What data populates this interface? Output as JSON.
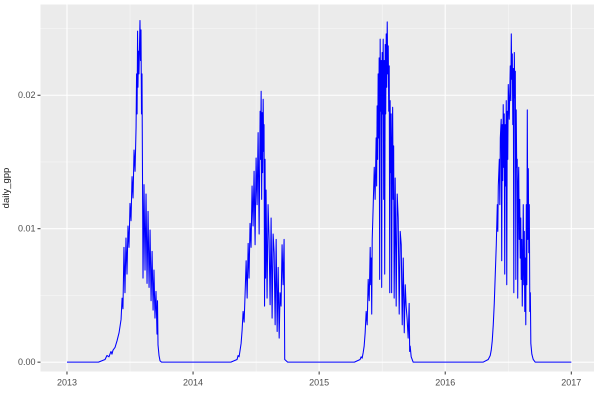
{
  "figure": {
    "kind": "ggplot2 time-series line chart",
    "title": "",
    "panel_background": "#EBEBEB",
    "gridline_color": "#FFFFFF",
    "line_color": "#0000FF",
    "tick_text_color": "#4D4D4D",
    "axis_title_color": "#1A1A1A"
  },
  "y_axis": {
    "title": "daily_gpp",
    "tick_labels": [
      "0.00",
      "0.01",
      "0.02"
    ]
  },
  "x_axis": {
    "title": "",
    "tick_labels": [
      "2013",
      "2014",
      "2015",
      "2016",
      "2017"
    ]
  },
  "chart_data": {
    "type": "line",
    "title": "",
    "xlabel": "",
    "ylabel": "daily_gpp",
    "legend": "none",
    "grid": "major white, minor white (thin) on gray panel",
    "x_ticks": [
      2013,
      2014,
      2015,
      2016,
      2017
    ],
    "x_tick_labels": [
      "2013",
      "2014",
      "2015",
      "2016",
      "2017"
    ],
    "x_minor_ticks": [
      2013.5,
      2014.5,
      2015.5,
      2016.5
    ],
    "y_ticks": [
      0,
      0.01,
      0.02
    ],
    "y_tick_labels": [
      "0.00",
      "0.01",
      "0.02"
    ],
    "y_minor_ticks": [
      0.005,
      0.015,
      0.025
    ],
    "xlim": [
      2012.79,
      2017.18
    ],
    "ylim": [
      -0.0007,
      0.0268
    ],
    "line_color": "#0000FF",
    "panel_bg": "#EBEBEB",
    "series": [
      {
        "name": "daily_gpp",
        "points": [
          [
            2013.0,
            0
          ],
          [
            2013.25,
            0
          ],
          [
            2013.302,
            0.0002
          ],
          [
            2013.317,
            0.0005
          ],
          [
            2013.333,
            0.0004
          ],
          [
            2013.349,
            0.0008
          ],
          [
            2013.357,
            0.0006
          ],
          [
            2013.365,
            0.0009
          ],
          [
            2013.381,
            0.0011
          ],
          [
            2013.397,
            0.0016
          ],
          [
            2013.413,
            0.0022
          ],
          [
            2013.429,
            0.0032
          ],
          [
            2013.437,
            0.0048
          ],
          [
            2013.444,
            0.004
          ],
          [
            2013.452,
            0.0086
          ],
          [
            2013.46,
            0.0052
          ],
          [
            2013.468,
            0.0093
          ],
          [
            2013.476,
            0.0066
          ],
          [
            2013.484,
            0.0102
          ],
          [
            2013.492,
            0.0086
          ],
          [
            2013.5,
            0.0119
          ],
          [
            2013.508,
            0.0106
          ],
          [
            2013.516,
            0.0139
          ],
          [
            2013.524,
            0.0123
          ],
          [
            2013.532,
            0.0159
          ],
          [
            2013.54,
            0.0143
          ],
          [
            2013.548,
            0.0176
          ],
          [
            2013.552,
            0.0216
          ],
          [
            2013.556,
            0.0186
          ],
          [
            2013.56,
            0.0248
          ],
          [
            2013.563,
            0.0206
          ],
          [
            2013.567,
            0.0233
          ],
          [
            2013.571,
            0.0216
          ],
          [
            2013.579,
            0.0256
          ],
          [
            2013.583,
            0.0226
          ],
          [
            2013.587,
            0.0249
          ],
          [
            2013.591,
            0.0186
          ],
          [
            2013.595,
            0.0216
          ],
          [
            2013.603,
            0.0063
          ],
          [
            2013.611,
            0.0133
          ],
          [
            2013.619,
            0.0069
          ],
          [
            2013.627,
            0.0126
          ],
          [
            2013.635,
            0.0059
          ],
          [
            2013.643,
            0.0113
          ],
          [
            2013.651,
            0.0056
          ],
          [
            2013.659,
            0.0099
          ],
          [
            2013.667,
            0.0046
          ],
          [
            2013.675,
            0.0083
          ],
          [
            2013.683,
            0.0039
          ],
          [
            2013.69,
            0.0069
          ],
          [
            2013.698,
            0.0033
          ],
          [
            2013.706,
            0.0053
          ],
          [
            2013.714,
            0.0021
          ],
          [
            2013.718,
            0.0046
          ],
          [
            2013.722,
            0.0013
          ],
          [
            2013.73,
            0.0005
          ],
          [
            2013.738,
            0.0001
          ],
          [
            2013.75,
            0
          ],
          [
            2014.3,
            0
          ],
          [
            2014.349,
            0.0002
          ],
          [
            2014.357,
            0.0005
          ],
          [
            2014.365,
            0.0004
          ],
          [
            2014.373,
            0.0009
          ],
          [
            2014.381,
            0.0014
          ],
          [
            2014.389,
            0.0024
          ],
          [
            2014.397,
            0.0038
          ],
          [
            2014.405,
            0.003
          ],
          [
            2014.413,
            0.0052
          ],
          [
            2014.421,
            0.0076
          ],
          [
            2014.429,
            0.0048
          ],
          [
            2014.437,
            0.0089
          ],
          [
            2014.444,
            0.0063
          ],
          [
            2014.452,
            0.0104
          ],
          [
            2014.46,
            0.0086
          ],
          [
            2014.468,
            0.0132
          ],
          [
            2014.476,
            0.0102
          ],
          [
            2014.484,
            0.0143
          ],
          [
            2014.492,
            0.0088
          ],
          [
            2014.5,
            0.0153
          ],
          [
            2014.508,
            0.0118
          ],
          [
            2014.516,
            0.0172
          ],
          [
            2014.524,
            0.0096
          ],
          [
            2014.532,
            0.0188
          ],
          [
            2014.536,
            0.0152
          ],
          [
            2014.54,
            0.0203
          ],
          [
            2014.544,
            0.0122
          ],
          [
            2014.548,
            0.0187
          ],
          [
            2014.552,
            0.0142
          ],
          [
            2014.556,
            0.0197
          ],
          [
            2014.56,
            0.0158
          ],
          [
            2014.563,
            0.0178
          ],
          [
            2014.567,
            0.0042
          ],
          [
            2014.571,
            0.0152
          ],
          [
            2014.575,
            0.0063
          ],
          [
            2014.579,
            0.0129
          ],
          [
            2014.587,
            0.0048
          ],
          [
            2014.595,
            0.0118
          ],
          [
            2014.603,
            0.0092
          ],
          [
            2014.611,
            0.0043
          ],
          [
            2014.619,
            0.0108
          ],
          [
            2014.627,
            0.0033
          ],
          [
            2014.635,
            0.0096
          ],
          [
            2014.643,
            0.0082
          ],
          [
            2014.651,
            0.0028
          ],
          [
            2014.659,
            0.0092
          ],
          [
            2014.667,
            0.0023
          ],
          [
            2014.675,
            0.0071
          ],
          [
            2014.683,
            0.0018
          ],
          [
            2014.69,
            0.0052
          ],
          [
            2014.698,
            0.0042
          ],
          [
            2014.706,
            0.0088
          ],
          [
            2014.714,
            0.0058
          ],
          [
            2014.722,
            0.0092
          ],
          [
            2014.727,
            0.0002
          ],
          [
            2014.75,
            0
          ],
          [
            2015.28,
            0
          ],
          [
            2015.325,
            0.0002
          ],
          [
            2015.333,
            0.0004
          ],
          [
            2015.341,
            0.0003
          ],
          [
            2015.349,
            0.0007
          ],
          [
            2015.357,
            0.0012
          ],
          [
            2015.365,
            0.0022
          ],
          [
            2015.373,
            0.0038
          ],
          [
            2015.381,
            0.0028
          ],
          [
            2015.389,
            0.0062
          ],
          [
            2015.397,
            0.0046
          ],
          [
            2015.405,
            0.0086
          ],
          [
            2015.409,
            0.0058
          ],
          [
            2015.413,
            0.0078
          ],
          [
            2015.417,
            0.0036
          ],
          [
            2015.421,
            0.0092
          ],
          [
            2015.429,
            0.0118
          ],
          [
            2015.437,
            0.0146
          ],
          [
            2015.444,
            0.0122
          ],
          [
            2015.452,
            0.0168
          ],
          [
            2015.456,
            0.0132
          ],
          [
            2015.46,
            0.0192
          ],
          [
            2015.464,
            0.0152
          ],
          [
            2015.468,
            0.0216
          ],
          [
            2015.472,
            0.0168
          ],
          [
            2015.476,
            0.0228
          ],
          [
            2015.48,
            0.0062
          ],
          [
            2015.484,
            0.0242
          ],
          [
            2015.488,
            0.0188
          ],
          [
            2015.492,
            0.0226
          ],
          [
            2015.496,
            0.0056
          ],
          [
            2015.5,
            0.0232
          ],
          [
            2015.504,
            0.0186
          ],
          [
            2015.508,
            0.0242
          ],
          [
            2015.512,
            0.0122
          ],
          [
            2015.516,
            0.0226
          ],
          [
            2015.52,
            0.0066
          ],
          [
            2015.524,
            0.0238
          ],
          [
            2015.528,
            0.0186
          ],
          [
            2015.532,
            0.0246
          ],
          [
            2015.536,
            0.0206
          ],
          [
            2015.54,
            0.0255
          ],
          [
            2015.544,
            0.0216
          ],
          [
            2015.548,
            0.0237
          ],
          [
            2015.552,
            0.0188
          ],
          [
            2015.556,
            0.0222
          ],
          [
            2015.56,
            0.0052
          ],
          [
            2015.563,
            0.0196
          ],
          [
            2015.567,
            0.0142
          ],
          [
            2015.571,
            0.0186
          ],
          [
            2015.575,
            0.0052
          ],
          [
            2015.579,
            0.0162
          ],
          [
            2015.583,
            0.0191
          ],
          [
            2015.587,
            0.0122
          ],
          [
            2015.591,
            0.0162
          ],
          [
            2015.595,
            0.0048
          ],
          [
            2015.603,
            0.0138
          ],
          [
            2015.611,
            0.0042
          ],
          [
            2015.619,
            0.0126
          ],
          [
            2015.627,
            0.0108
          ],
          [
            2015.635,
            0.0036
          ],
          [
            2015.643,
            0.0098
          ],
          [
            2015.651,
            0.0088
          ],
          [
            2015.659,
            0.0028
          ],
          [
            2015.667,
            0.0078
          ],
          [
            2015.675,
            0.0022
          ],
          [
            2015.683,
            0.0058
          ],
          [
            2015.69,
            0.0042
          ],
          [
            2015.698,
            0.0032
          ],
          [
            2015.706,
            0.0018
          ],
          [
            2015.714,
            0.0044
          ],
          [
            2015.718,
            0.0008
          ],
          [
            2015.722,
            0.0012
          ],
          [
            2015.73,
            0.0004
          ],
          [
            2015.746,
            0
          ],
          [
            2016.3,
            0
          ],
          [
            2016.341,
            0.0002
          ],
          [
            2016.357,
            0.0005
          ],
          [
            2016.365,
            0.0009
          ],
          [
            2016.373,
            0.0016
          ],
          [
            2016.381,
            0.0028
          ],
          [
            2016.389,
            0.0044
          ],
          [
            2016.397,
            0.0066
          ],
          [
            2016.405,
            0.0088
          ],
          [
            2016.413,
            0.0118
          ],
          [
            2016.417,
            0.0098
          ],
          [
            2016.421,
            0.0132
          ],
          [
            2016.429,
            0.0152
          ],
          [
            2016.433,
            0.0118
          ],
          [
            2016.437,
            0.0168
          ],
          [
            2016.444,
            0.0182
          ],
          [
            2016.448,
            0.0076
          ],
          [
            2016.452,
            0.0178
          ],
          [
            2016.456,
            0.0136
          ],
          [
            2016.46,
            0.0193
          ],
          [
            2016.464,
            0.0146
          ],
          [
            2016.468,
            0.0186
          ],
          [
            2016.472,
            0.0066
          ],
          [
            2016.476,
            0.0178
          ],
          [
            2016.48,
            0.0132
          ],
          [
            2016.484,
            0.0196
          ],
          [
            2016.488,
            0.0058
          ],
          [
            2016.492,
            0.0188
          ],
          [
            2016.496,
            0.0152
          ],
          [
            2016.5,
            0.0208
          ],
          [
            2016.508,
            0.0182
          ],
          [
            2016.516,
            0.0222
          ],
          [
            2016.52,
            0.0196
          ],
          [
            2016.524,
            0.0246
          ],
          [
            2016.528,
            0.0212
          ],
          [
            2016.532,
            0.0231
          ],
          [
            2016.536,
            0.0178
          ],
          [
            2016.54,
            0.022
          ],
          [
            2016.544,
            0.0052
          ],
          [
            2016.548,
            0.0232
          ],
          [
            2016.552,
            0.0198
          ],
          [
            2016.556,
            0.0218
          ],
          [
            2016.56,
            0.0062
          ],
          [
            2016.563,
            0.0189
          ],
          [
            2016.567,
            0.0146
          ],
          [
            2016.571,
            0.0152
          ],
          [
            2016.575,
            0.0048
          ],
          [
            2016.579,
            0.0132
          ],
          [
            2016.583,
            0.0146
          ],
          [
            2016.587,
            0.0092
          ],
          [
            2016.591,
            0.0122
          ],
          [
            2016.595,
            0.0078
          ],
          [
            2016.599,
            0.0108
          ],
          [
            2016.603,
            0.0062
          ],
          [
            2016.607,
            0.0092
          ],
          [
            2016.611,
            0.0042
          ],
          [
            2016.615,
            0.0072
          ],
          [
            2016.619,
            0.0118
          ],
          [
            2016.623,
            0.0058
          ],
          [
            2016.627,
            0.0098
          ],
          [
            2016.631,
            0.0038
          ],
          [
            2016.635,
            0.0078
          ],
          [
            2016.639,
            0.0028
          ],
          [
            2016.643,
            0.0118
          ],
          [
            2016.647,
            0.0058
          ],
          [
            2016.651,
            0.0189
          ],
          [
            2016.655,
            0.0092
          ],
          [
            2016.659,
            0.0145
          ],
          [
            2016.663,
            0.0082
          ],
          [
            2016.667,
            0.0118
          ],
          [
            2016.671,
            0.0038
          ],
          [
            2016.675,
            0.0052
          ],
          [
            2016.679,
            0.0014
          ],
          [
            2016.687,
            0.0006
          ],
          [
            2016.698,
            0.0002
          ],
          [
            2016.714,
            0
          ],
          [
            2017.0,
            0
          ]
        ]
      }
    ]
  }
}
